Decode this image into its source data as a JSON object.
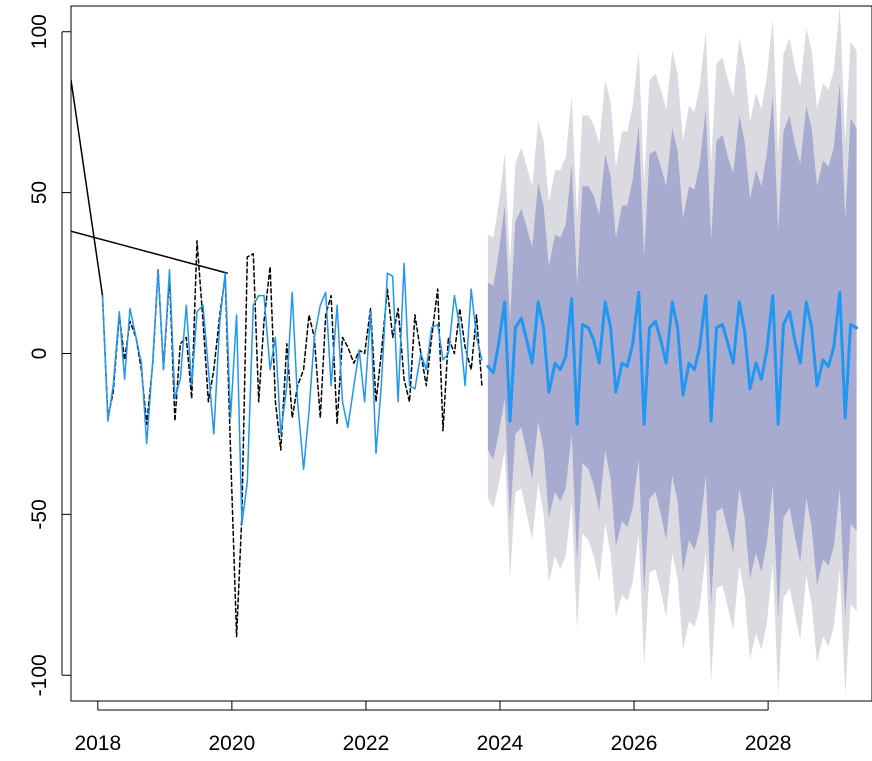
{
  "chart_data": {
    "type": "line",
    "title": "",
    "xlabel": "",
    "ylabel": "",
    "xlim": [
      2017.6,
      2029.55
    ],
    "ylim": [
      -108,
      108
    ],
    "x_ticks": [
      2018,
      2020,
      2022,
      2024,
      2026,
      2028
    ],
    "y_ticks": [
      -100,
      -50,
      0,
      50,
      100
    ],
    "x_tick_labels": [
      "2018",
      "2020",
      "2022",
      "2024",
      "2026",
      "2028"
    ],
    "y_tick_labels": [
      "-100",
      "-50",
      "0",
      "50",
      "100"
    ],
    "grid": false,
    "legend": "none",
    "colors": {
      "observed": "#000000",
      "fitted": "#2196F3",
      "forecast": "#2196F3",
      "band80": "#A7ABCF",
      "band95": "#DADAE0"
    },
    "series": [
      {
        "role": "observed-solid",
        "style": "solid",
        "x": [
          2017.6,
          2018.07
        ],
        "y": [
          85,
          18
        ]
      },
      {
        "role": "observed-solid",
        "style": "solid",
        "x": [
          2017.6,
          2019.93
        ],
        "y": [
          38,
          25
        ]
      },
      {
        "role": "observed-dashed",
        "style": "dashed",
        "x": [
          2018.07,
          2018.15,
          2018.23,
          2018.32,
          2018.4,
          2018.48,
          2018.57,
          2018.65,
          2018.73,
          2018.82,
          2018.9,
          2018.98,
          2019.07,
          2019.15,
          2019.23,
          2019.32,
          2019.4,
          2019.48,
          2019.57,
          2019.65,
          2019.73,
          2019.82,
          2019.9,
          2019.98,
          2020.07,
          2020.15,
          2020.23,
          2020.32,
          2020.4,
          2020.48,
          2020.57,
          2020.65,
          2020.73,
          2020.82,
          2020.9,
          2020.98,
          2021.07,
          2021.15,
          2021.23,
          2021.32,
          2021.4,
          2021.48,
          2021.57,
          2021.65,
          2021.73,
          2021.82,
          2021.9,
          2021.98,
          2022.07,
          2022.15,
          2022.23,
          2022.32,
          2022.4,
          2022.48,
          2022.57,
          2022.65,
          2022.73,
          2022.82,
          2022.9,
          2022.98,
          2023.07,
          2023.15,
          2023.23,
          2023.32,
          2023.4,
          2023.48,
          2023.57,
          2023.65,
          2023.73
        ],
        "y": [
          18,
          -20,
          -12,
          12,
          -2,
          10,
          5,
          -5,
          -22,
          -3,
          26,
          -5,
          24,
          -21,
          3,
          5,
          -14,
          35,
          10,
          -15,
          -5,
          12,
          24,
          -30,
          -88,
          -50,
          30,
          31,
          -15,
          10,
          27,
          -15,
          -30,
          3,
          -20,
          -10,
          -5,
          12,
          5,
          -20,
          12,
          18,
          -22,
          5,
          2,
          -3,
          1,
          0,
          14,
          -15,
          0,
          20,
          5,
          14,
          -8,
          -15,
          12,
          0,
          -10,
          5,
          20,
          -24,
          5,
          0,
          14,
          2,
          -5,
          12,
          -10
        ]
      },
      {
        "role": "fitted",
        "style": "solid",
        "x": [
          2018.07,
          2018.15,
          2018.23,
          2018.32,
          2018.4,
          2018.48,
          2018.57,
          2018.65,
          2018.73,
          2018.82,
          2018.9,
          2018.98,
          2019.07,
          2019.15,
          2019.23,
          2019.32,
          2019.4,
          2019.48,
          2019.57,
          2019.65,
          2019.73,
          2019.82,
          2019.9,
          2019.98,
          2020.07,
          2020.15,
          2020.23,
          2020.32,
          2020.4,
          2020.48,
          2020.57,
          2020.65,
          2020.73,
          2020.82,
          2020.9,
          2020.98,
          2021.07,
          2021.15,
          2021.23,
          2021.32,
          2021.4,
          2021.48,
          2021.57,
          2021.65,
          2021.73,
          2021.82,
          2021.9,
          2021.98,
          2022.07,
          2022.15,
          2022.23,
          2022.32,
          2022.4,
          2022.48,
          2022.57,
          2022.65,
          2022.73,
          2022.82,
          2022.9,
          2022.98,
          2023.07,
          2023.15,
          2023.23,
          2023.32,
          2023.4,
          2023.48,
          2023.57,
          2023.65,
          2023.73
        ],
        "y": [
          18,
          -21,
          -10,
          13,
          -8,
          14,
          5,
          -3,
          -28,
          -2,
          26,
          -5,
          26,
          -14,
          -8,
          15,
          -10,
          13,
          15,
          -5,
          -25,
          10,
          25,
          -20,
          12,
          -53,
          -40,
          15,
          18,
          18,
          -5,
          5,
          -25,
          -10,
          19,
          -15,
          -36,
          -18,
          5,
          15,
          19,
          -10,
          15,
          -15,
          -23,
          -10,
          1,
          -15,
          13,
          -31,
          -10,
          25,
          24,
          -15,
          28,
          -10,
          -11,
          0,
          -5,
          8,
          9,
          -2,
          0,
          18,
          8,
          -10,
          20,
          5,
          -2
        ]
      },
      {
        "role": "forecast-mean",
        "style": "solid",
        "x": [
          2023.82,
          2023.9,
          2023.98,
          2024.07,
          2024.15,
          2024.23,
          2024.32,
          2024.4,
          2024.48,
          2024.57,
          2024.65,
          2024.73,
          2024.82,
          2024.9,
          2024.98,
          2025.07,
          2025.15,
          2025.23,
          2025.32,
          2025.4,
          2025.48,
          2025.57,
          2025.65,
          2025.73,
          2025.82,
          2025.9,
          2025.98,
          2026.07,
          2026.15,
          2026.23,
          2026.32,
          2026.4,
          2026.48,
          2026.57,
          2026.65,
          2026.73,
          2026.82,
          2026.9,
          2026.98,
          2027.07,
          2027.15,
          2027.23,
          2027.32,
          2027.4,
          2027.48,
          2027.57,
          2027.65,
          2027.73,
          2027.82,
          2027.9,
          2027.98,
          2028.07,
          2028.15,
          2028.23,
          2028.32,
          2028.4,
          2028.48,
          2028.57,
          2028.65,
          2028.73,
          2028.82,
          2028.9,
          2028.98,
          2029.07,
          2029.15,
          2029.23,
          2029.32
        ],
        "y": [
          -4,
          -6,
          3,
          16,
          -21,
          8,
          11,
          4,
          -3,
          16,
          8,
          -12,
          -3,
          -5,
          -1,
          17,
          -22,
          9,
          8,
          4,
          -3,
          16,
          8,
          -12,
          -3,
          -4,
          3,
          19,
          -22,
          8,
          10,
          4,
          -3,
          16,
          8,
          -13,
          -3,
          -5,
          2,
          18,
          -21,
          8,
          9,
          3,
          -3,
          16,
          7,
          -11,
          -3,
          -8,
          1,
          18,
          -22,
          9,
          13,
          4,
          -3,
          16,
          8,
          -10,
          -2,
          -4,
          2,
          19,
          -20,
          9,
          8
        ]
      }
    ],
    "forecast_band_80": {
      "x": [
        2023.82,
        2023.9,
        2023.98,
        2024.07,
        2024.15,
        2024.23,
        2024.32,
        2024.4,
        2024.48,
        2024.57,
        2024.65,
        2024.73,
        2024.82,
        2024.9,
        2024.98,
        2025.07,
        2025.15,
        2025.23,
        2025.32,
        2025.4,
        2025.48,
        2025.57,
        2025.65,
        2025.73,
        2025.82,
        2025.9,
        2025.98,
        2026.07,
        2026.15,
        2026.23,
        2026.32,
        2026.4,
        2026.48,
        2026.57,
        2026.65,
        2026.73,
        2026.82,
        2026.9,
        2026.98,
        2027.07,
        2027.15,
        2027.23,
        2027.32,
        2027.4,
        2027.48,
        2027.57,
        2027.65,
        2027.73,
        2027.82,
        2027.9,
        2027.98,
        2028.07,
        2028.15,
        2028.23,
        2028.32,
        2028.4,
        2028.48,
        2028.57,
        2028.65,
        2028.73,
        2028.82,
        2028.9,
        2028.98,
        2029.07,
        2029.15,
        2029.23,
        2029.32
      ],
      "lower": [
        -30,
        -33,
        -25,
        -14,
        -52,
        -25,
        -23,
        -31,
        -39,
        -21,
        -30,
        -51,
        -43,
        -46,
        -42,
        -25,
        -65,
        -34,
        -36,
        -41,
        -49,
        -30,
        -39,
        -60,
        -52,
        -54,
        -48,
        -33,
        -74,
        -45,
        -43,
        -50,
        -58,
        -38,
        -46,
        -68,
        -58,
        -61,
        -55,
        -38,
        -78,
        -49,
        -48,
        -55,
        -62,
        -42,
        -51,
        -70,
        -62,
        -68,
        -59,
        -41,
        -82,
        -51,
        -48,
        -57,
        -65,
        -45,
        -54,
        -72,
        -64,
        -66,
        -60,
        -42,
        -82,
        -53,
        -55
      ],
      "upper": [
        22,
        21,
        31,
        46,
        10,
        41,
        45,
        39,
        33,
        53,
        46,
        27,
        37,
        36,
        40,
        59,
        21,
        52,
        52,
        49,
        43,
        62,
        55,
        36,
        46,
        46,
        54,
        71,
        30,
        62,
        63,
        58,
        52,
        70,
        63,
        42,
        52,
        51,
        59,
        76,
        35,
        66,
        68,
        61,
        56,
        74,
        66,
        48,
        57,
        52,
        62,
        80,
        38,
        69,
        74,
        65,
        59,
        77,
        70,
        52,
        60,
        58,
        64,
        84,
        42,
        73,
        70
      ]
    },
    "forecast_band_95": {
      "x": [
        2023.82,
        2023.9,
        2023.98,
        2024.07,
        2024.15,
        2024.23,
        2024.32,
        2024.4,
        2024.48,
        2024.57,
        2024.65,
        2024.73,
        2024.82,
        2024.9,
        2024.98,
        2025.07,
        2025.15,
        2025.23,
        2025.32,
        2025.4,
        2025.48,
        2025.57,
        2025.65,
        2025.73,
        2025.82,
        2025.9,
        2025.98,
        2026.07,
        2026.15,
        2026.23,
        2026.32,
        2026.4,
        2026.48,
        2026.57,
        2026.65,
        2026.73,
        2026.82,
        2026.9,
        2026.98,
        2027.07,
        2027.15,
        2027.23,
        2027.32,
        2027.4,
        2027.48,
        2027.57,
        2027.65,
        2027.73,
        2027.82,
        2027.9,
        2027.98,
        2028.07,
        2028.15,
        2028.23,
        2028.32,
        2028.4,
        2028.48,
        2028.57,
        2028.65,
        2028.73,
        2028.82,
        2028.9,
        2028.98,
        2029.07,
        2029.15,
        2029.23,
        2029.32
      ],
      "lower": [
        -45,
        -48,
        -41,
        -30,
        -70,
        -43,
        -42,
        -50,
        -58,
        -40,
        -50,
        -71,
        -63,
        -67,
        -63,
        -46,
        -86,
        -56,
        -58,
        -63,
        -71,
        -53,
        -62,
        -82,
        -75,
        -77,
        -71,
        -56,
        -97,
        -68,
        -67,
        -74,
        -82,
        -62,
        -70,
        -92,
        -83,
        -85,
        -79,
        -62,
        -102,
        -73,
        -72,
        -79,
        -86,
        -66,
        -75,
        -95,
        -87,
        -92,
        -84,
        -65,
        -106,
        -76,
        -73,
        -81,
        -89,
        -69,
        -78,
        -96,
        -88,
        -91,
        -85,
        -67,
        -106,
        -78,
        -80
      ],
      "upper": [
        37,
        36,
        46,
        62,
        28,
        59,
        64,
        58,
        52,
        72,
        66,
        47,
        57,
        57,
        61,
        80,
        42,
        74,
        74,
        71,
        65,
        85,
        78,
        58,
        69,
        69,
        77,
        94,
        53,
        85,
        87,
        82,
        76,
        94,
        87,
        66,
        77,
        75,
        83,
        100,
        59,
        90,
        92,
        85,
        80,
        98,
        90,
        72,
        81,
        76,
        86,
        104,
        62,
        93,
        98,
        89,
        83,
        101,
        94,
        76,
        84,
        82,
        88,
        108,
        66,
        97,
        94
      ]
    }
  }
}
